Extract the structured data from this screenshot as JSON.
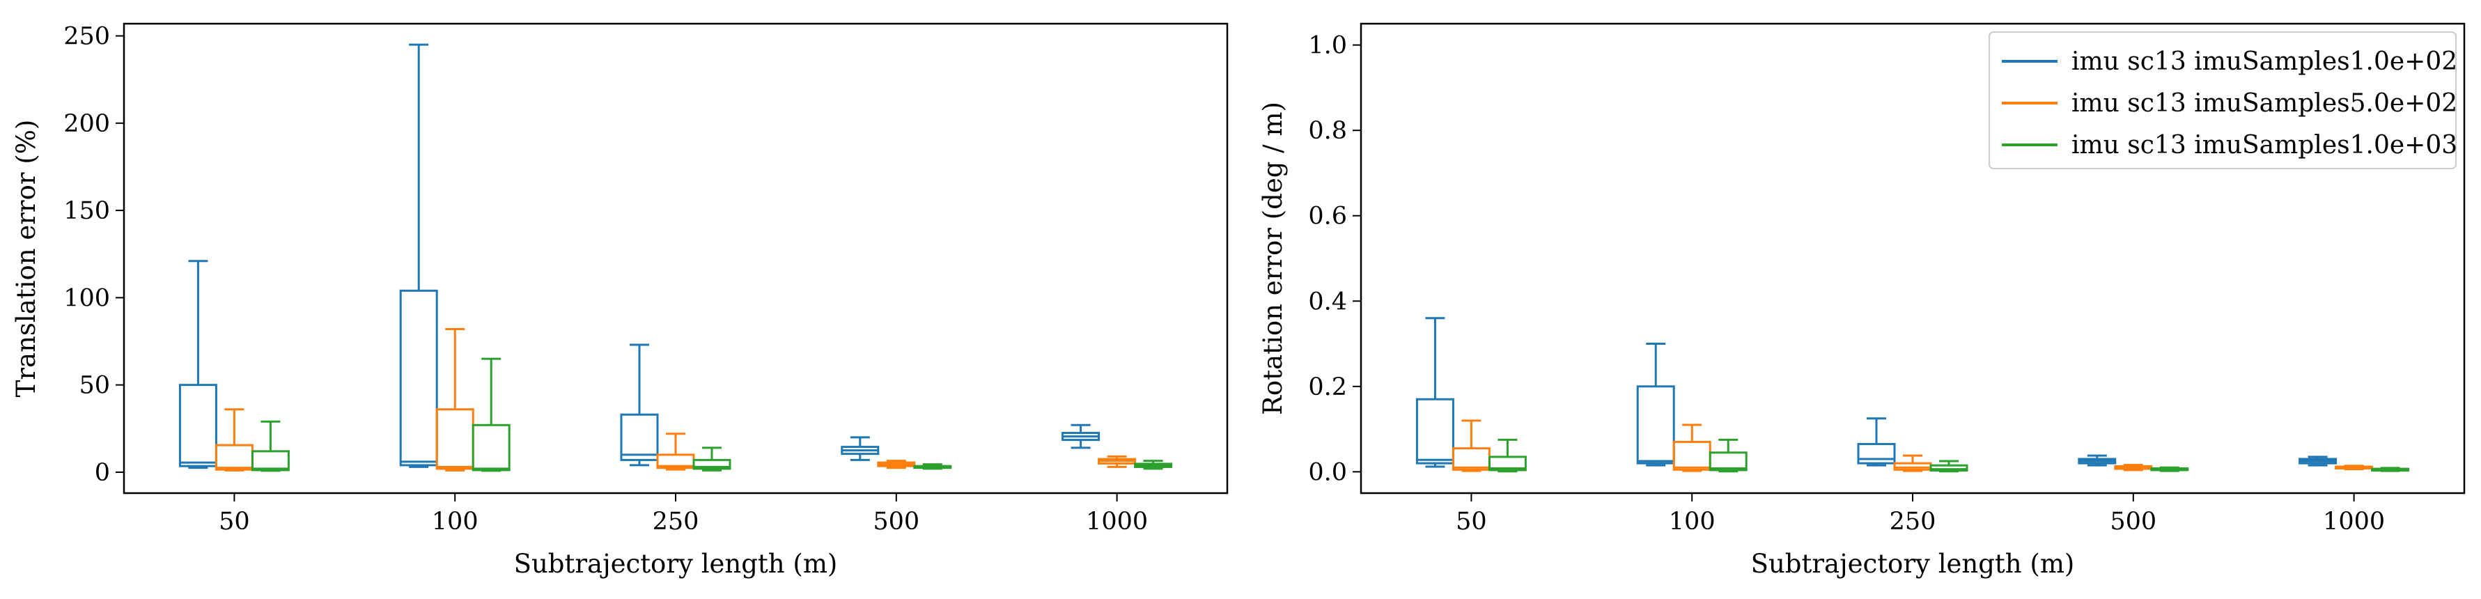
{
  "chart_data": [
    {
      "type": "box",
      "title": "",
      "xlabel": "Subtrajectory length (m)",
      "ylabel": "Translation error (%)",
      "ylim": [
        -12,
        257
      ],
      "yticks": [
        0,
        50,
        100,
        150,
        200,
        250
      ],
      "categories": [
        "50",
        "100",
        "250",
        "500",
        "1000"
      ],
      "legend": null,
      "series": [
        {
          "name": "imu sc13 imuSamples1.0e+02",
          "color": "#1f77b4",
          "boxes": [
            {
              "whislo": 2.5,
              "q1": 3.5,
              "median": 5.5,
              "q3": 50,
              "whishi": 121
            },
            {
              "whislo": 3,
              "q1": 4,
              "median": 6,
              "q3": 104,
              "whishi": 245
            },
            {
              "whislo": 4,
              "q1": 7,
              "median": 10,
              "q3": 33,
              "whishi": 73
            },
            {
              "whislo": 7,
              "q1": 10.5,
              "median": 12.5,
              "q3": 14.5,
              "whishi": 20
            },
            {
              "whislo": 14,
              "q1": 18.5,
              "median": 20.5,
              "q3": 22.5,
              "whishi": 27
            }
          ]
        },
        {
          "name": "imu sc13 imuSamples5.0e+02",
          "color": "#ff7f0e",
          "boxes": [
            {
              "whislo": 1,
              "q1": 1.5,
              "median": 2.5,
              "q3": 15.5,
              "whishi": 36
            },
            {
              "whislo": 1,
              "q1": 2,
              "median": 3,
              "q3": 36,
              "whishi": 82
            },
            {
              "whislo": 1.5,
              "q1": 2.5,
              "median": 3.5,
              "q3": 10,
              "whishi": 22
            },
            {
              "whislo": 2.5,
              "q1": 3.5,
              "median": 4.5,
              "q3": 5.5,
              "whishi": 6.5
            },
            {
              "whislo": 3,
              "q1": 5,
              "median": 6.5,
              "q3": 7.5,
              "whishi": 9
            }
          ]
        },
        {
          "name": "imu sc13 imuSamples1.0e+03",
          "color": "#2ca02c",
          "boxes": [
            {
              "whislo": 0.8,
              "q1": 1.2,
              "median": 2,
              "q3": 12,
              "whishi": 29
            },
            {
              "whislo": 0.8,
              "q1": 1.2,
              "median": 2,
              "q3": 27,
              "whishi": 65
            },
            {
              "whislo": 1,
              "q1": 2,
              "median": 3,
              "q3": 7,
              "whishi": 14
            },
            {
              "whislo": 2,
              "q1": 2.5,
              "median": 3,
              "q3": 3.5,
              "whishi": 4.5
            },
            {
              "whislo": 2,
              "q1": 3,
              "median": 4,
              "q3": 4.8,
              "whishi": 6.5
            }
          ]
        }
      ]
    },
    {
      "type": "box",
      "title": "",
      "xlabel": "Subtrajectory length (m)",
      "ylabel": "Rotation error (deg / m)",
      "ylim": [
        -0.05,
        1.05
      ],
      "yticks": [
        0.0,
        0.2,
        0.4,
        0.6,
        0.8,
        1.0
      ],
      "ytick_labels": [
        "0.0",
        "0.2",
        "0.4",
        "0.6",
        "0.8",
        "1.0"
      ],
      "categories": [
        "50",
        "100",
        "250",
        "500",
        "1000"
      ],
      "legend": "top-right",
      "series": [
        {
          "name": "imu sc13 imuSamples1.0e+02",
          "color": "#1f77b4",
          "boxes": [
            {
              "whislo": 0.012,
              "q1": 0.02,
              "median": 0.028,
              "q3": 0.17,
              "whishi": 0.36
            },
            {
              "whislo": 0.015,
              "q1": 0.02,
              "median": 0.025,
              "q3": 0.2,
              "whishi": 0.3
            },
            {
              "whislo": 0.015,
              "q1": 0.02,
              "median": 0.03,
              "q3": 0.065,
              "whishi": 0.125
            },
            {
              "whislo": 0.015,
              "q1": 0.02,
              "median": 0.025,
              "q3": 0.03,
              "whishi": 0.038
            },
            {
              "whislo": 0.015,
              "q1": 0.02,
              "median": 0.025,
              "q3": 0.03,
              "whishi": 0.035
            }
          ]
        },
        {
          "name": "imu sc13 imuSamples5.0e+02",
          "color": "#ff7f0e",
          "boxes": [
            {
              "whislo": 0.002,
              "q1": 0.005,
              "median": 0.01,
              "q3": 0.055,
              "whishi": 0.12
            },
            {
              "whislo": 0.002,
              "q1": 0.005,
              "median": 0.01,
              "q3": 0.07,
              "whishi": 0.11
            },
            {
              "whislo": 0.002,
              "q1": 0.005,
              "median": 0.01,
              "q3": 0.02,
              "whishi": 0.038
            },
            {
              "whislo": 0.004,
              "q1": 0.007,
              "median": 0.01,
              "q3": 0.013,
              "whishi": 0.016
            },
            {
              "whislo": 0.006,
              "q1": 0.008,
              "median": 0.01,
              "q3": 0.012,
              "whishi": 0.014
            }
          ]
        },
        {
          "name": "imu sc13 imuSamples1.0e+03",
          "color": "#2ca02c",
          "boxes": [
            {
              "whislo": 0.001,
              "q1": 0.004,
              "median": 0.008,
              "q3": 0.035,
              "whishi": 0.075
            },
            {
              "whislo": 0.001,
              "q1": 0.004,
              "median": 0.008,
              "q3": 0.045,
              "whishi": 0.075
            },
            {
              "whislo": 0.001,
              "q1": 0.003,
              "median": 0.006,
              "q3": 0.015,
              "whishi": 0.025
            },
            {
              "whislo": 0.002,
              "q1": 0.004,
              "median": 0.006,
              "q3": 0.008,
              "whishi": 0.01
            },
            {
              "whislo": 0.002,
              "q1": 0.003,
              "median": 0.005,
              "q3": 0.007,
              "whishi": 0.009
            }
          ]
        }
      ]
    }
  ]
}
